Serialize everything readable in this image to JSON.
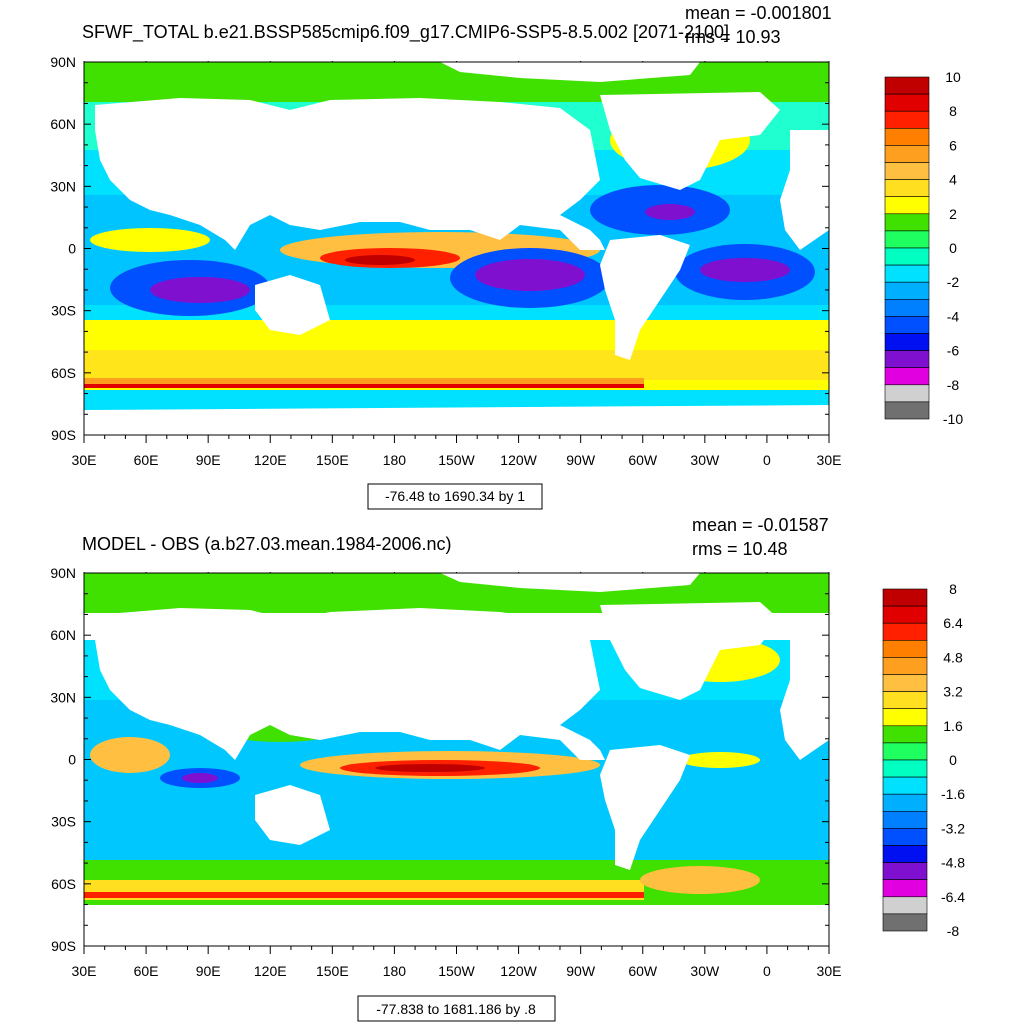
{
  "panels": [
    {
      "id": "top",
      "title": "SFWF_TOTAL b.e21.BSSP585cmip6.f09_g17.CMIP6-SSP5-8.5.002 [2071-2100]",
      "mean": "mean = -0.001801",
      "rms": "rms = 10.93",
      "range_box": "-76.48 to 1690.34 by 1",
      "colorbar_labels": [
        "10",
        "8",
        "6",
        "4",
        "2",
        "0",
        "-2",
        "-4",
        "-6",
        "-8",
        "-10"
      ]
    },
    {
      "id": "bottom",
      "title": "MODEL - OBS (a.b27.03.mean.1984-2006.nc)",
      "mean": "mean = -0.01587",
      "rms": "rms = 10.48",
      "range_box": "-77.838 to 1681.186 by .8",
      "colorbar_labels": [
        "8",
        "6.4",
        "4.8",
        "3.2",
        "1.6",
        "0",
        "-1.6",
        "-3.2",
        "-4.8",
        "-6.4",
        "-8"
      ]
    }
  ],
  "lat_labels": [
    "90N",
    "60N",
    "30N",
    "0",
    "30S",
    "60S",
    "90S"
  ],
  "lon_labels": [
    "30E",
    "60E",
    "90E",
    "120E",
    "150E",
    "180",
    "150W",
    "120W",
    "90W",
    "60W",
    "30W",
    "0",
    "30E"
  ],
  "colorbar_colors": [
    "#c00000",
    "#e00000",
    "#ff2000",
    "#ff7f00",
    "#ff9f20",
    "#ffbf40",
    "#ffdf20",
    "#ffff00",
    "#40e000",
    "#20ff60",
    "#00ffc0",
    "#00e0ff",
    "#00b0ff",
    "#0080ff",
    "#0050ff",
    "#0010f0",
    "#8010d0",
    "#e000e0",
    "#d0d0d0",
    "#707070"
  ]
}
